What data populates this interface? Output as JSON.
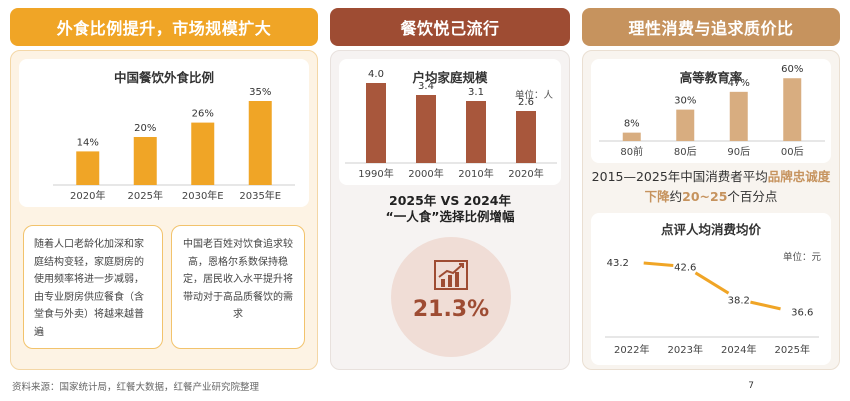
{
  "panel1": {
    "header": "外食比例提升，市场规模扩大",
    "note_left": "随着人口老龄化加深和家庭结构变轻，家庭厨房的使用频率将进一步减弱，由专业厨房供应餐食（含堂食与外卖）将越来越普遍",
    "note_right": "中国老百姓对饮食追求较高，恩格尔系数保持稳定，居民收入水平提升将带动对于高品质餐饮的需求"
  },
  "panel2": {
    "header": "餐饮悦己流行",
    "comparison_title_line1": "2025年 VS 2024年",
    "comparison_title_line2": "“一人食”选择比例增幅",
    "comparison_value": "21.3%"
  },
  "panel3": {
    "header": "理性消费与追求质价比",
    "statement_pre": "2015—2025年中国消费者平均",
    "statement_hl1": "品牌忠诚度下降",
    "statement_mid": "约",
    "statement_hl2": "20~25",
    "statement_post": "个百分点"
  },
  "chart_data": [
    {
      "type": "bar",
      "title": "中国餐饮外食比例",
      "categories": [
        "2020年",
        "2025年",
        "2030年E",
        "2035年E"
      ],
      "values": [
        14,
        20,
        26,
        35
      ],
      "labels": [
        "14%",
        "20%",
        "26%",
        "35%"
      ],
      "ylim": [
        0,
        40
      ],
      "color": "#f0a526"
    },
    {
      "type": "bar",
      "title": "户均家庭规模",
      "unit": "单位：人",
      "categories": [
        "1990年",
        "2000年",
        "2010年",
        "2020年"
      ],
      "values": [
        4.0,
        3.4,
        3.1,
        2.6
      ],
      "labels": [
        "4.0",
        "3.4",
        "3.1",
        "2.6"
      ],
      "ylim": [
        0,
        5
      ],
      "color": "#a8573c"
    },
    {
      "type": "bar",
      "title": "高等教育率",
      "categories": [
        "80前",
        "80后",
        "90后",
        "00后"
      ],
      "values": [
        8,
        30,
        47,
        60
      ],
      "labels": [
        "8%",
        "30%",
        "47%",
        "60%"
      ],
      "ylim": [
        0,
        65
      ],
      "color": "#d8ad80"
    },
    {
      "type": "line",
      "title": "点评人均消费均价",
      "unit": "单位：元",
      "categories": [
        "2022年",
        "2023年",
        "2024年",
        "2025年"
      ],
      "values": [
        43.2,
        42.6,
        38.2,
        36.6
      ],
      "labels": [
        "43.2",
        "42.6",
        "38.2",
        "36.6"
      ],
      "ylim": [
        34,
        46
      ],
      "color": "#f0a526"
    }
  ],
  "footer": {
    "source": "资料来源：国家统计局，红餐大数据，红餐产业研究院整理",
    "page_number": "7"
  }
}
